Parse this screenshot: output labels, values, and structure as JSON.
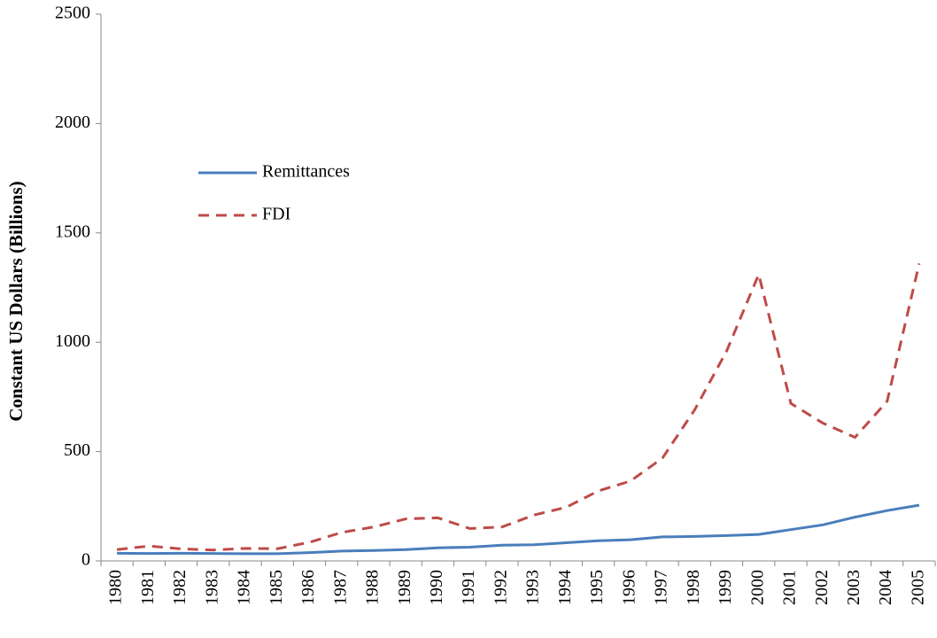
{
  "chart_data": {
    "type": "line",
    "y_axis_label": "Constant US  Dollars (Billions)",
    "categories": [
      "1980",
      "1981",
      "1982",
      "1983",
      "1984",
      "1985",
      "1986",
      "1987",
      "1988",
      "1989",
      "1990",
      "1991",
      "1992",
      "1993",
      "1994",
      "1995",
      "1996",
      "1997",
      "1998",
      "1999",
      "2000",
      "2001",
      "2002",
      "2003",
      "2004",
      "2005"
    ],
    "series": [
      {
        "name": "Remittances",
        "color": "#4a7ebb",
        "dash": "solid",
        "values": [
          35,
          34,
          35,
          34,
          33,
          33,
          38,
          45,
          48,
          52,
          60,
          63,
          72,
          74,
          83,
          92,
          97,
          110,
          112,
          116,
          121,
          143,
          165,
          200,
          230,
          255
        ]
      },
      {
        "name": "FDI",
        "color": "#be4b48",
        "dash": "dashed",
        "values": [
          52,
          68,
          55,
          50,
          57,
          56,
          85,
          130,
          155,
          192,
          197,
          148,
          155,
          210,
          245,
          320,
          365,
          470,
          690,
          960,
          1310,
          720,
          630,
          565,
          730,
          1360
        ]
      }
    ],
    "ylim": [
      0,
      2500
    ],
    "yticks": [
      0,
      500,
      1000,
      1500,
      2000,
      2500
    ],
    "legend": "upper-left",
    "grid": false
  }
}
